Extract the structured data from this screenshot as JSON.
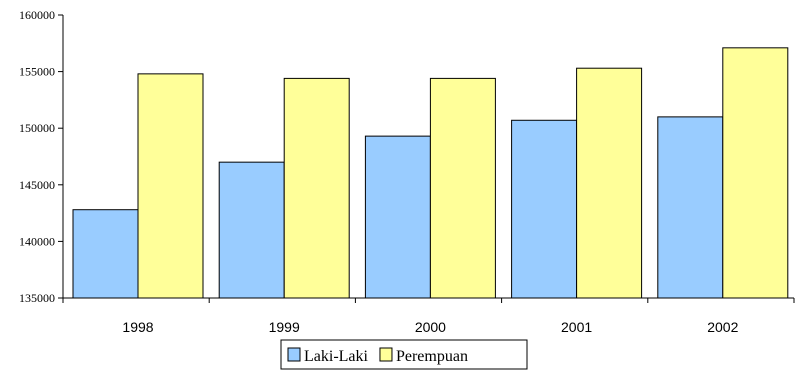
{
  "chart_data": {
    "type": "bar",
    "categories": [
      "1998",
      "1999",
      "2000",
      "2001",
      "2002"
    ],
    "series": [
      {
        "name": "Laki-Laki",
        "color": "#99CCFF",
        "values": [
          142800,
          147000,
          149300,
          150700,
          151000
        ]
      },
      {
        "name": "Perempuan",
        "color": "#FFFF99",
        "values": [
          154800,
          154400,
          154400,
          155300,
          157100
        ]
      }
    ],
    "ylim": [
      135000,
      160000
    ],
    "yticks": [
      "135000",
      "140000",
      "145000",
      "150000",
      "155000",
      "160000"
    ],
    "grid": false,
    "legend": "bottom-center",
    "title": "",
    "xlabel": "",
    "ylabel": ""
  }
}
